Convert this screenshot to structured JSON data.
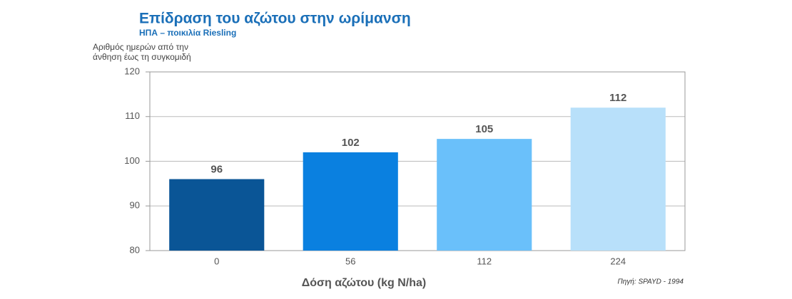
{
  "chart_data": {
    "type": "bar",
    "title": "Επίδραση του αζώτου στην ωρίμανση",
    "subtitle": "ΗΠΑ – ποικιλία Riesling",
    "y_label": [
      "Αριθμός ημερών από την",
      "άνθηση έως τη συγκομιδή"
    ],
    "x_label": "Δόση αζώτου (kg N/ha)",
    "source": "Πηγή: SPAYD - 1994",
    "categories": [
      "0",
      "56",
      "112",
      "224"
    ],
    "values": [
      96,
      102,
      105,
      112
    ],
    "colors": [
      "#0a5596",
      "#0a80e0",
      "#6ac0fa",
      "#b8e0fa"
    ],
    "ylim": [
      80,
      120
    ],
    "yticks": [
      80,
      90,
      100,
      110,
      120
    ],
    "grid": true
  }
}
